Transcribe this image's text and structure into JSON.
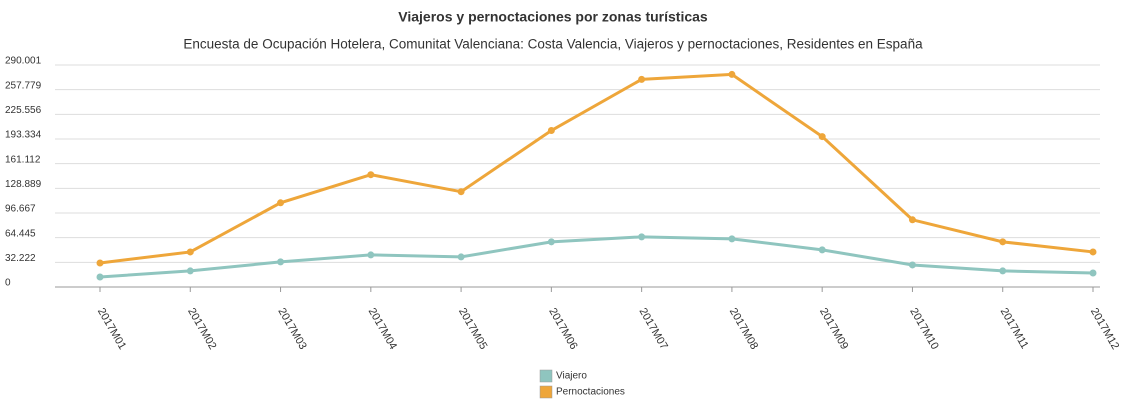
{
  "chart_data": {
    "type": "line",
    "title": "Viajeros y pernoctaciones por zonas turísticas",
    "subtitle": "Encuesta de Ocupación Hotelera, Comunitat Valenciana: Costa Valencia, Viajeros y pernoctaciones, Residentes en España",
    "categories": [
      "2017M01",
      "2017M02",
      "2017M03",
      "2017M04",
      "2017M05",
      "2017M06",
      "2017M07",
      "2017M08",
      "2017M09",
      "2017M10",
      "2017M11",
      "2017M12"
    ],
    "series": [
      {
        "name": "Viajero",
        "color": "#8fc5bf",
        "values": [
          13100,
          21000,
          32800,
          41900,
          39300,
          59000,
          65500,
          62900,
          48500,
          28800,
          21000,
          18300
        ]
      },
      {
        "name": "Pernoctaciones",
        "color": "#eea63a",
        "values": [
          31400,
          45800,
          110000,
          146700,
          124500,
          204400,
          271200,
          277700,
          196500,
          87800,
          59000,
          45800
        ]
      }
    ],
    "ylim": [
      0,
      290001
    ],
    "yticks": [
      0,
      {
        "value": 32222,
        "label": "32.222"
      },
      {
        "value": 64445,
        "label": "64.445"
      },
      {
        "value": 96667,
        "label": "96.667"
      },
      {
        "value": 128889,
        "label": "128.889"
      },
      {
        "value": 161112,
        "label": "161.112"
      },
      {
        "value": 193334,
        "label": "193.334"
      },
      {
        "value": 225556,
        "label": "225.556"
      },
      {
        "value": 257779,
        "label": "257.779"
      },
      {
        "value": 290001,
        "label": "290.001"
      }
    ],
    "grid": true,
    "legend": "bottom"
  }
}
